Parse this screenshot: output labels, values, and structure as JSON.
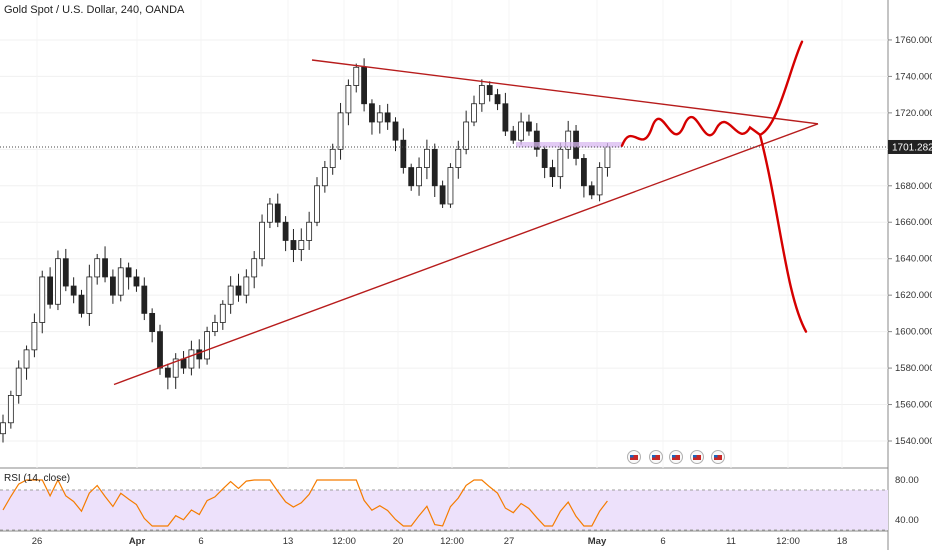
{
  "chart_title": "Gold Spot / U.S. Dollar, 240, OANDA",
  "rsi_title": "RSI (14, close)",
  "colors": {
    "up": "#ffffff",
    "down": "#222222",
    "trendline": "#b71c1c",
    "projection": "#d50000",
    "rsi_line": "#f57c00",
    "rsi_band": "#ede1fb",
    "zone": "#d8b8f0",
    "price_tag_bg": "#222222"
  },
  "chart_data": [
    {
      "type": "candlestick",
      "title": "Gold Spot / U.S. Dollar, 240, OANDA",
      "ylim": [
        1535,
        1770
      ],
      "y_ticks": [
        1540,
        1560,
        1580,
        1600,
        1620,
        1640,
        1660,
        1680,
        1700,
        1720,
        1740,
        1760
      ],
      "y_tick_labels": [
        "1540.000",
        "1560.000",
        "1580.000",
        "1600.000",
        "1620.000",
        "1640.000",
        "1660.000",
        "1680.000",
        "1700.000",
        "1720.000",
        "1740.000",
        "1760.000"
      ],
      "x_tick_labels": [
        "26",
        "Apr",
        "6",
        "13",
        "12:00",
        "20",
        "12:00",
        "27",
        "May",
        "6",
        "11",
        "12:00",
        "18"
      ],
      "last_price": 1701.282,
      "last_price_label": "1701.282",
      "approx_closes": [
        1550,
        1565,
        1580,
        1590,
        1605,
        1630,
        1615,
        1640,
        1625,
        1620,
        1610,
        1630,
        1640,
        1630,
        1620,
        1635,
        1630,
        1625,
        1610,
        1600,
        1580,
        1575,
        1585,
        1580,
        1590,
        1585,
        1600,
        1605,
        1615,
        1625,
        1620,
        1630,
        1640,
        1660,
        1670,
        1660,
        1650,
        1645,
        1650,
        1660,
        1680,
        1690,
        1700,
        1720,
        1735,
        1745,
        1725,
        1715,
        1720,
        1715,
        1705,
        1690,
        1680,
        1690,
        1700,
        1680,
        1670,
        1690,
        1700,
        1715,
        1725,
        1735,
        1730,
        1725,
        1710,
        1705,
        1715,
        1710,
        1700,
        1690,
        1685,
        1700,
        1710,
        1695,
        1680,
        1675,
        1690,
        1701.282
      ],
      "annotations": [
        "triangle-pattern",
        "breakout-up-projection",
        "breakdown-projection",
        "resistance-zone"
      ]
    },
    {
      "type": "line",
      "title": "RSI (14, close)",
      "ylim": [
        30,
        90
      ],
      "y_ticks": [
        40,
        80
      ],
      "y_tick_labels": [
        "40.00",
        "80.00"
      ],
      "bands": [
        30,
        70
      ]
    }
  ]
}
